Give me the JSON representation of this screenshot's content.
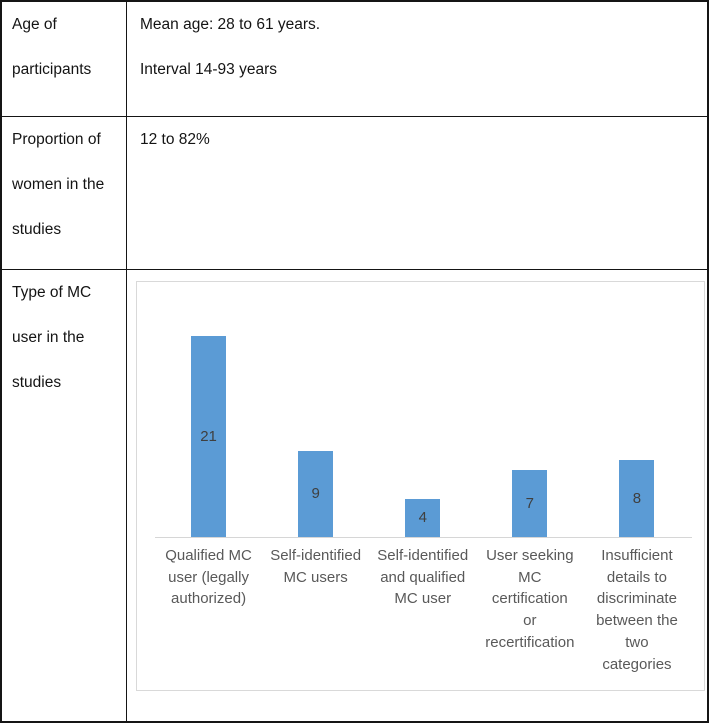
{
  "table": {
    "rows": [
      {
        "label_lines": [
          "Age of",
          "participants"
        ],
        "value_lines": [
          "Mean age: 28 to 61 years.",
          "Interval 14-93 years"
        ]
      },
      {
        "label_lines": [
          "Proportion of",
          "women in the",
          "studies"
        ],
        "value_lines": [
          "12 to 82%"
        ]
      },
      {
        "label_lines": [
          "Type of MC",
          "user in the",
          "studies"
        ],
        "value_lines": []
      }
    ]
  },
  "chart_data": {
    "type": "bar",
    "title": "",
    "xlabel": "",
    "ylabel": "",
    "categories": [
      "Qualified MC user (legally authorized)",
      "Self-identified MC users",
      "Self-identified and qualified MC user",
      "User seeking MC certification or recertification",
      "Insufficient details to discriminate between the two categories"
    ],
    "category_lines": [
      [
        "Qualified MC",
        "user (legally",
        "authorized)"
      ],
      [
        "Self-identified",
        "MC users"
      ],
      [
        "Self-identified",
        "and qualified",
        "MC user"
      ],
      [
        "User seeking",
        "MC",
        "certification",
        "or",
        "recertification"
      ],
      [
        "Insufficient",
        "details to",
        "discriminate",
        "between the",
        "two",
        "categories"
      ]
    ],
    "values": [
      21,
      9,
      4,
      7,
      8
    ],
    "data_labels": [
      "21",
      "9",
      "4",
      "7",
      "8"
    ],
    "ylim": [
      0,
      21.5
    ],
    "grid": false,
    "legend": false,
    "legend_position": "none",
    "axis_ticks_visible": false,
    "colors": {
      "bar": "#5b9bd5",
      "data_label": "#3f3f3f",
      "category_label": "#595959",
      "axis_line": "#d6d6d6",
      "chart_border": "#d9d9d9"
    }
  }
}
